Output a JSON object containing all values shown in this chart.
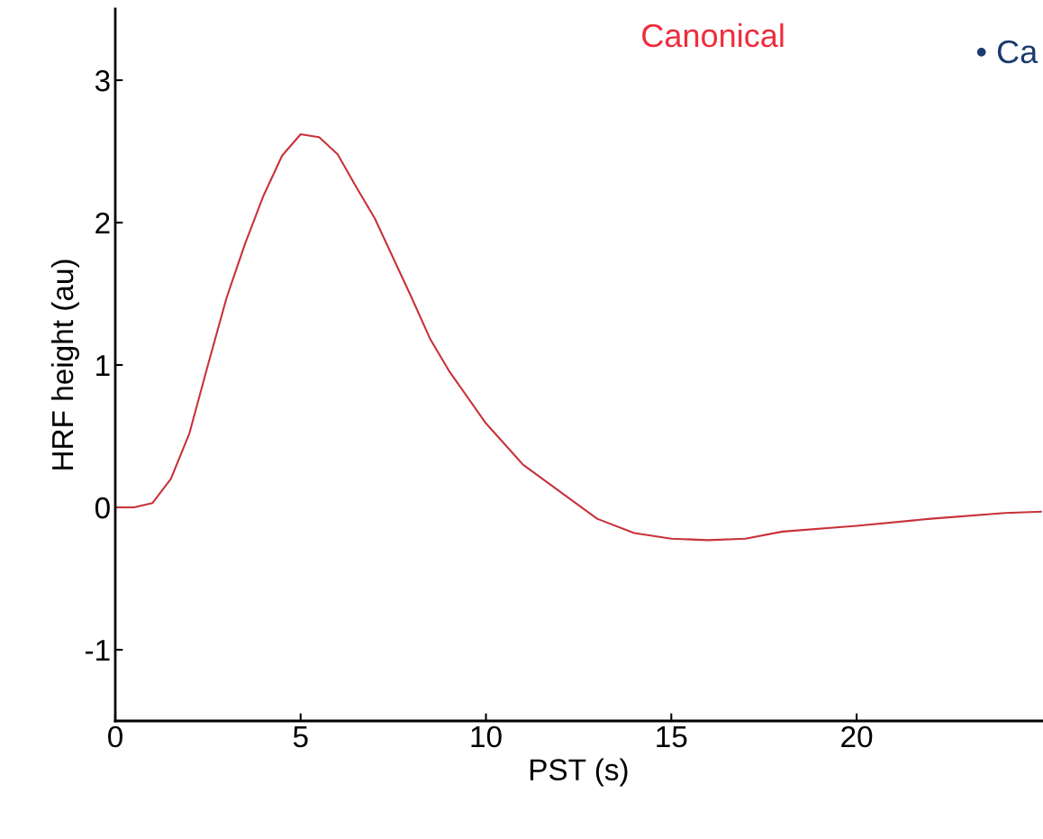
{
  "chart_data": {
    "type": "line",
    "xlabel": "PST (s)",
    "ylabel": "HRF height (au)",
    "annotations": [
      "Canonical",
      "• Ca"
    ],
    "x": [
      0,
      0.5,
      1,
      1.5,
      2,
      2.5,
      3,
      3.5,
      4,
      4.5,
      5,
      5.5,
      6,
      6.5,
      7,
      7.5,
      8,
      8.5,
      9,
      10,
      11,
      12,
      13,
      14,
      15,
      16,
      17,
      18,
      20,
      22,
      24,
      25
    ],
    "series": [
      {
        "color": "#c8323a",
        "values": [
          0,
          0,
          0.03,
          0.2,
          0.52,
          1.0,
          1.47,
          1.85,
          2.19,
          2.47,
          2.62,
          2.6,
          2.48,
          2.25,
          2.03,
          1.75,
          1.47,
          1.18,
          0.96,
          0.59,
          0.3,
          0.11,
          -0.08,
          -0.18,
          -0.22,
          -0.23,
          -0.22,
          -0.17,
          -0.13,
          -0.08,
          -0.04,
          -0.03
        ]
      }
    ],
    "xlim": [
      0,
      25
    ],
    "xticks": [
      0,
      5,
      10,
      15,
      20
    ],
    "ylim": [
      -1.5,
      3.5
    ],
    "yticks": [
      -1,
      0,
      1,
      2,
      3
    ],
    "grid": false,
    "legend": false,
    "marker": "none",
    "line_style": "solid"
  }
}
